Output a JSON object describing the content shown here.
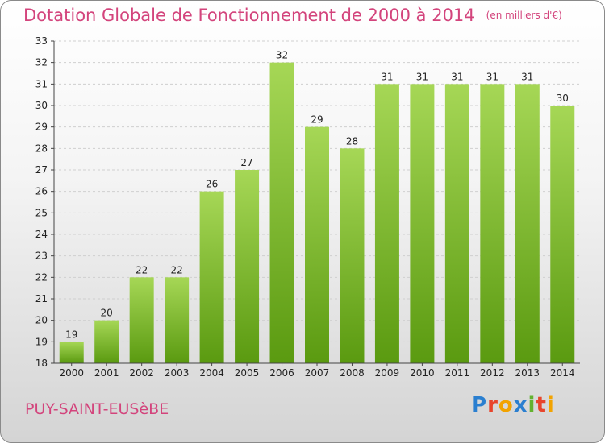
{
  "header": {
    "title": "Dotation Globale de Fonctionnement de 2000 à 2014",
    "unit": "(en milliers d'€)"
  },
  "footer": {
    "commune": "PUY-SAINT-EUSèBE",
    "logo": {
      "p": "P",
      "r": "r",
      "o": "o",
      "x": "x",
      "i": "i",
      "t": "t",
      "i2": "i"
    }
  },
  "colors": {
    "title": "#d3447c",
    "bar_light": "#a6d756",
    "bar_dark": "#5a9a10"
  },
  "chart_data": {
    "type": "bar",
    "title": "Dotation Globale de Fonctionnement de 2000 à 2014",
    "subtitle": "(en milliers d'€)",
    "categories": [
      "2000",
      "2001",
      "2002",
      "2003",
      "2004",
      "2005",
      "2006",
      "2007",
      "2008",
      "2009",
      "2010",
      "2011",
      "2012",
      "2013",
      "2014"
    ],
    "values": [
      19,
      20,
      22,
      22,
      26,
      27,
      32,
      29,
      28,
      31,
      31,
      31,
      31,
      31,
      30
    ],
    "ylim": [
      18,
      33
    ],
    "yticks": [
      18,
      19,
      20,
      21,
      22,
      23,
      24,
      25,
      26,
      27,
      28,
      29,
      30,
      31,
      32,
      33
    ],
    "grid": true
  }
}
